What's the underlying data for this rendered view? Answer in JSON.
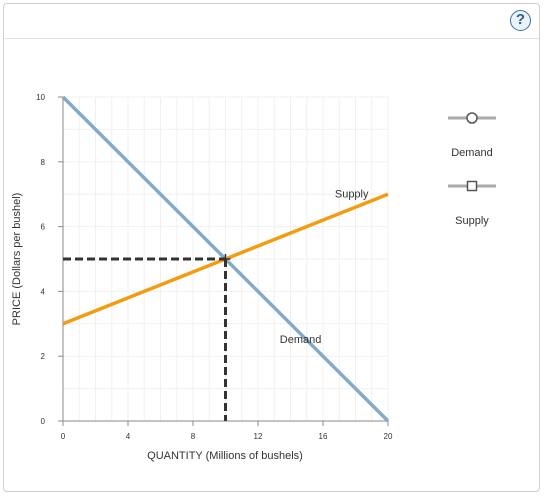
{
  "toolbar": {
    "help_label": "?",
    "help_icon": "help-icon"
  },
  "chart_data": {
    "type": "line",
    "xlabel": "QUANTITY (Millions of bushels)",
    "ylabel": "PRICE (Dollars per bushel)",
    "xlim": [
      0,
      20
    ],
    "ylim": [
      0,
      10
    ],
    "xticks": [
      0,
      4,
      8,
      12,
      16,
      20
    ],
    "yticks": [
      0,
      2,
      4,
      6,
      8,
      10
    ],
    "grid": true,
    "legend_placement": "right",
    "series": [
      {
        "name": "Demand",
        "color": "#84aac8",
        "marker": "circle",
        "x": [
          0,
          20
        ],
        "y": [
          10,
          0
        ]
      },
      {
        "name": "Supply",
        "color": "#f39c12",
        "marker": "square",
        "x": [
          0,
          20
        ],
        "y": [
          3,
          7
        ]
      }
    ],
    "equilibrium": {
      "x": 10,
      "y": 5,
      "color": "#333333"
    },
    "annotations": [
      {
        "text": "Supply",
        "x": 18.8,
        "y": 6.9
      },
      {
        "text": "Demand",
        "x": 15.9,
        "y": 2.4
      }
    ]
  }
}
